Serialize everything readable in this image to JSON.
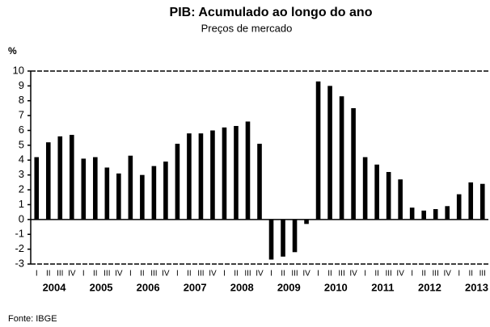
{
  "chart_data": {
    "type": "bar",
    "title": "PIB: Acumulado ao longo do ano",
    "subtitle": "Preços de mercado",
    "y_label": "%",
    "categories": [
      "I",
      "II",
      "III",
      "IV",
      "I",
      "II",
      "III",
      "IV",
      "I",
      "II",
      "III",
      "IV",
      "I",
      "II",
      "III",
      "IV",
      "I",
      "II",
      "III",
      "IV",
      "I",
      "II",
      "III",
      "IV",
      "I",
      "II",
      "III",
      "IV",
      "I",
      "II",
      "III",
      "IV",
      "I",
      "II",
      "III",
      "IV",
      "I",
      "II",
      "III"
    ],
    "years": [
      "2004",
      "2005",
      "2006",
      "2007",
      "2008",
      "2009",
      "2010",
      "2011",
      "2012",
      "2013"
    ],
    "values": [
      4.2,
      5.2,
      5.6,
      5.7,
      4.1,
      4.2,
      3.5,
      3.1,
      4.3,
      3.0,
      3.6,
      3.9,
      5.1,
      5.8,
      5.8,
      6.0,
      6.2,
      6.3,
      6.6,
      5.1,
      -2.7,
      -2.5,
      -2.2,
      -0.3,
      9.3,
      9.0,
      8.3,
      7.5,
      4.2,
      3.7,
      3.2,
      2.7,
      0.8,
      0.6,
      0.7,
      0.9,
      1.7,
      2.5,
      2.4
    ],
    "color": "#000000",
    "ylim": [
      -3,
      10
    ],
    "yticks": [
      -3,
      -2,
      -1,
      0,
      1,
      2,
      3,
      4,
      5,
      6,
      7,
      8,
      9,
      10
    ],
    "source": "Fonte: IBGE"
  }
}
